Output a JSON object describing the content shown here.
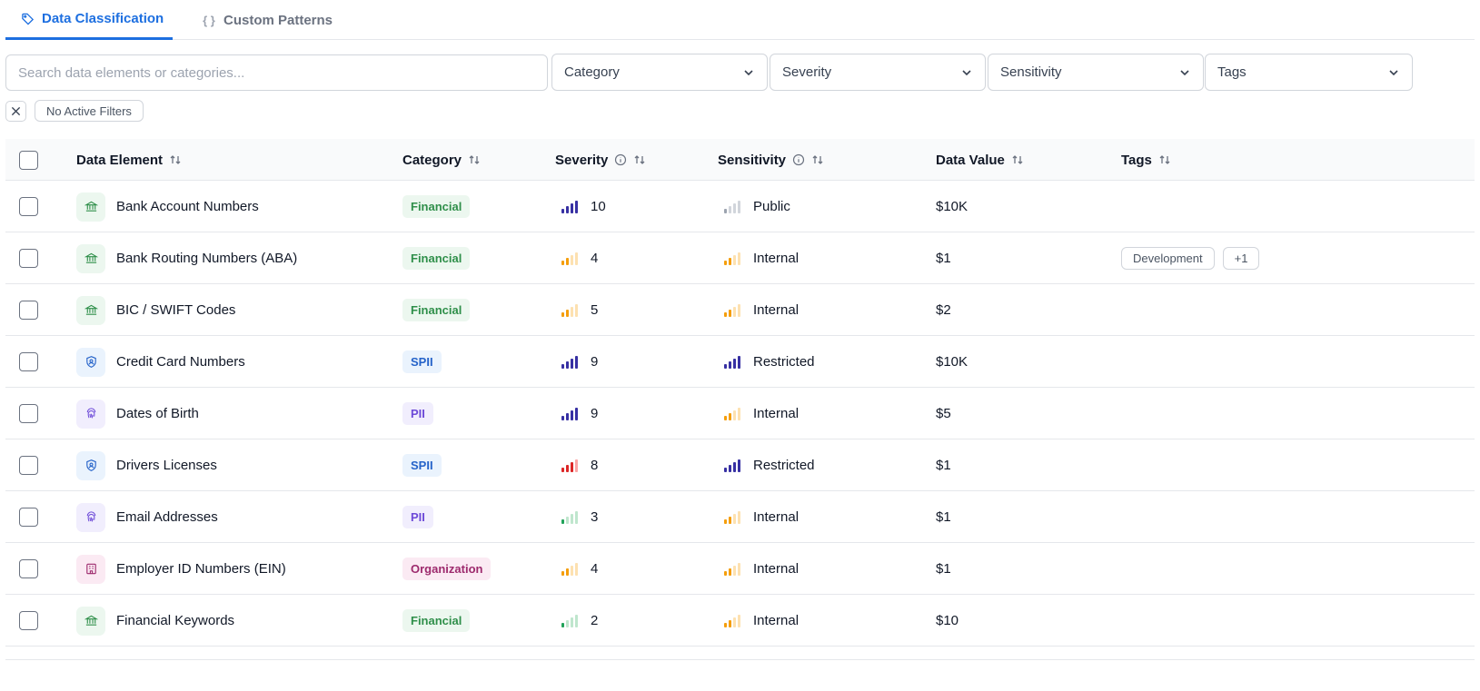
{
  "tabs": [
    {
      "label": "Data Classification",
      "icon": "tag-icon",
      "active": true
    },
    {
      "label": "Custom Patterns",
      "icon": "braces-icon",
      "active": false
    }
  ],
  "search": {
    "placeholder": "Search data elements or categories..."
  },
  "filters": [
    {
      "label": "Category"
    },
    {
      "label": "Severity"
    },
    {
      "label": "Sensitivity"
    },
    {
      "label": "Tags"
    }
  ],
  "active_filters": {
    "label": "No Active Filters"
  },
  "table": {
    "columns": [
      {
        "label": "Data Element",
        "info": false
      },
      {
        "label": "Category",
        "info": false
      },
      {
        "label": "Severity",
        "info": true
      },
      {
        "label": "Sensitivity",
        "info": true
      },
      {
        "label": "Data Value",
        "info": false
      },
      {
        "label": "Tags",
        "info": false
      }
    ],
    "rows": [
      {
        "name": "Bank Account Numbers",
        "icon": "bank-icon",
        "category": "Financial",
        "severity_level": "critical",
        "severity": "10",
        "sensitivity_level": "public",
        "sensitivity": "Public",
        "value": "$10K",
        "tags": []
      },
      {
        "name": "Bank Routing Numbers (ABA)",
        "icon": "bank-icon",
        "category": "Financial",
        "severity_level": "medium",
        "severity": "4",
        "sensitivity_level": "internal",
        "sensitivity": "Internal",
        "value": "$1",
        "tags": [
          "Development",
          "+1"
        ]
      },
      {
        "name": "BIC / SWIFT Codes",
        "icon": "bank-icon",
        "category": "Financial",
        "severity_level": "medium",
        "severity": "5",
        "sensitivity_level": "internal",
        "sensitivity": "Internal",
        "value": "$2",
        "tags": []
      },
      {
        "name": "Credit Card Numbers",
        "icon": "shield-user-icon",
        "category": "SPII",
        "severity_level": "critical",
        "severity": "9",
        "sensitivity_level": "restricted",
        "sensitivity": "Restricted",
        "value": "$10K",
        "tags": []
      },
      {
        "name": "Dates of Birth",
        "icon": "fingerprint-icon",
        "category": "PII",
        "severity_level": "critical",
        "severity": "9",
        "sensitivity_level": "internal",
        "sensitivity": "Internal",
        "value": "$5",
        "tags": []
      },
      {
        "name": "Drivers Licenses",
        "icon": "shield-user-icon",
        "category": "SPII",
        "severity_level": "high",
        "severity": "8",
        "sensitivity_level": "restricted",
        "sensitivity": "Restricted",
        "value": "$1",
        "tags": []
      },
      {
        "name": "Email Addresses",
        "icon": "fingerprint-icon",
        "category": "PII",
        "severity_level": "low",
        "severity": "3",
        "sensitivity_level": "internal",
        "sensitivity": "Internal",
        "value": "$1",
        "tags": []
      },
      {
        "name": "Employer ID Numbers (EIN)",
        "icon": "building-icon",
        "category": "Organization",
        "severity_level": "medium",
        "severity": "4",
        "sensitivity_level": "internal",
        "sensitivity": "Internal",
        "value": "$1",
        "tags": []
      },
      {
        "name": "Financial Keywords",
        "icon": "bank-icon",
        "category": "Financial",
        "severity_level": "low",
        "severity": "2",
        "sensitivity_level": "internal",
        "sensitivity": "Internal",
        "value": "$10",
        "tags": []
      }
    ]
  },
  "colors": {
    "accent": "#1d6fe0",
    "Financial": {
      "bg": "#ecf7ef",
      "fg": "#2f8f4a"
    },
    "SPII": {
      "bg": "#eaf3fd",
      "fg": "#2563c9"
    },
    "PII": {
      "bg": "#f1eefd",
      "fg": "#6d4ad8"
    },
    "Organization": {
      "bg": "#fbeaf3",
      "fg": "#9d2a6d"
    },
    "levels": {
      "critical": {
        "on": "#3730a3",
        "off": "#3730a3",
        "filled": 4
      },
      "restricted": {
        "on": "#3730a3",
        "off": "#3730a3",
        "filled": 4
      },
      "high": {
        "on": "#dc2626",
        "off": "#fca5a5",
        "filled": 3
      },
      "medium": {
        "on": "#f59e0b",
        "off": "#fde1b0",
        "filled": 2
      },
      "internal": {
        "on": "#f59e0b",
        "off": "#fde1b0",
        "filled": 2
      },
      "low": {
        "on": "#22a35a",
        "off": "#bfe6cd",
        "filled": 1
      },
      "public": {
        "on": "#9ca3af",
        "off": "#d1d5db",
        "filled": 1
      }
    }
  }
}
